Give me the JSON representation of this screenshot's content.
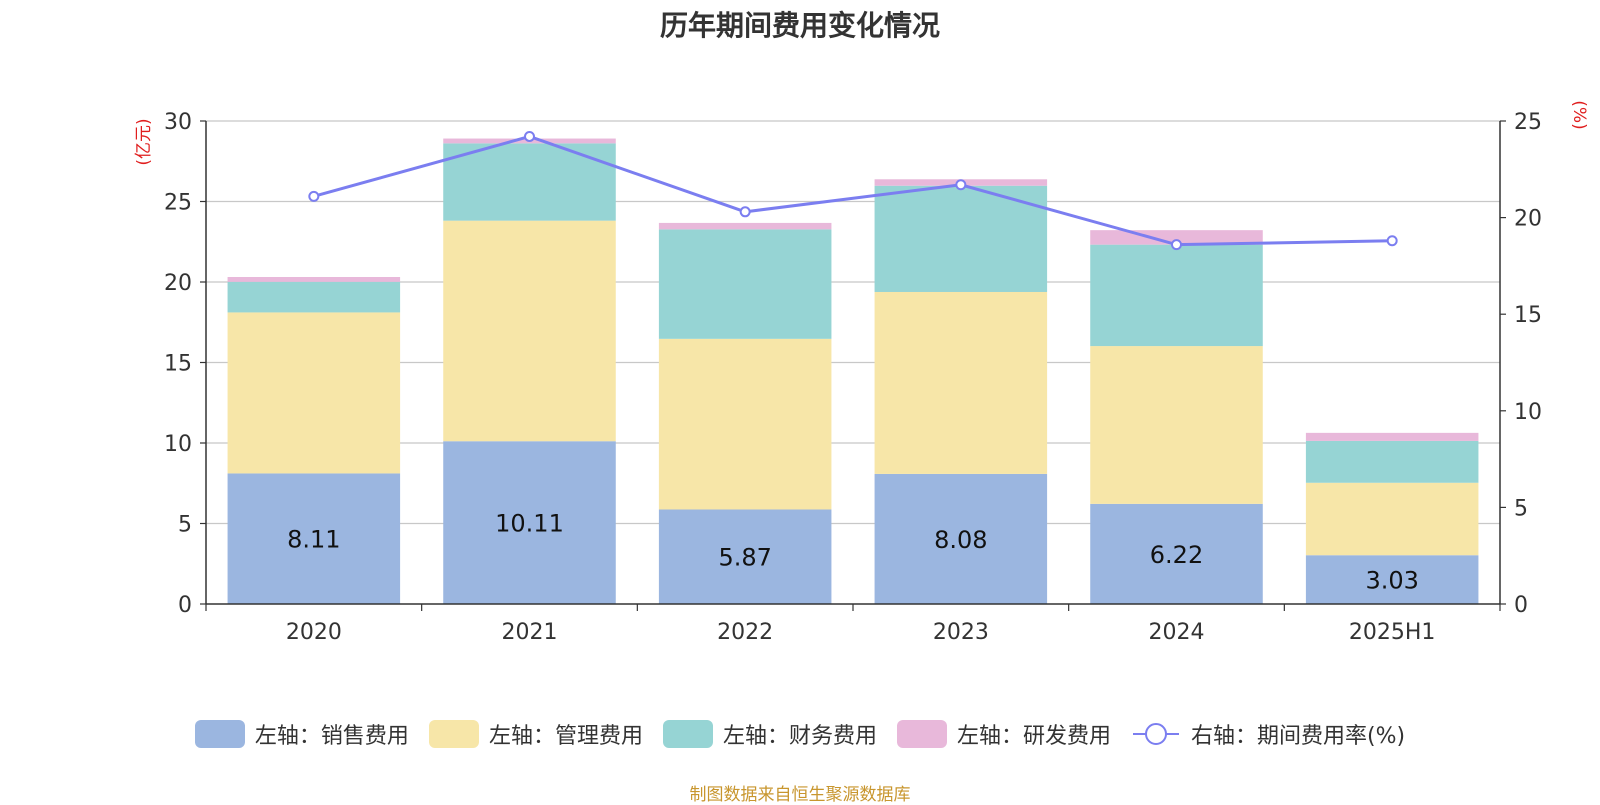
{
  "chart_data": {
    "type": "bar",
    "title": "历年期间费用变化情况",
    "categories": [
      "2020",
      "2021",
      "2022",
      "2023",
      "2024",
      "2025H1"
    ],
    "series": [
      {
        "name": "左轴：销售费用",
        "kind": "bar",
        "axis": "left",
        "color": "#9bb6e0",
        "values": [
          8.11,
          10.11,
          5.87,
          8.08,
          6.22,
          3.03
        ],
        "labels_shown": true
      },
      {
        "name": "左轴：管理费用",
        "kind": "bar",
        "axis": "left",
        "color": "#f7e6a8",
        "values": [
          10.0,
          13.7,
          10.6,
          11.3,
          9.8,
          4.5
        ]
      },
      {
        "name": "左轴：财务费用",
        "kind": "bar",
        "axis": "left",
        "color": "#96d4d4",
        "values": [
          1.9,
          4.8,
          6.8,
          6.6,
          6.3,
          2.6
        ]
      },
      {
        "name": "左轴：研发费用",
        "kind": "bar",
        "axis": "left",
        "color": "#e8b8da",
        "values": [
          0.3,
          0.3,
          0.4,
          0.4,
          0.9,
          0.5
        ]
      },
      {
        "name": "右轴：期间费用率(%)",
        "kind": "line",
        "axis": "right",
        "color": "#7b7ef0",
        "values": [
          21.1,
          24.2,
          20.3,
          21.7,
          18.6,
          18.8
        ]
      }
    ],
    "y_left": {
      "unit": "(亿元)",
      "ylim": [
        0,
        30
      ],
      "ticks": [
        0,
        5,
        10,
        15,
        20,
        25,
        30
      ]
    },
    "y_right": {
      "unit": "(%)",
      "ylim": [
        0,
        25
      ],
      "ticks": [
        0,
        5,
        10,
        15,
        20,
        25
      ]
    },
    "grid": true,
    "legend_position": "bottom",
    "stacked": true
  },
  "source": "制图数据来自恒生聚源数据库"
}
